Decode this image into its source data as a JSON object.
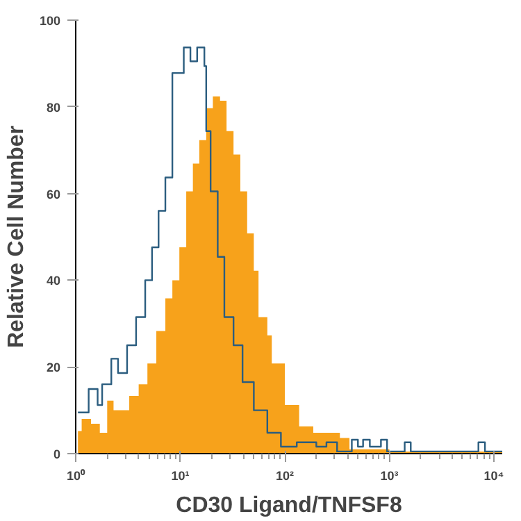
{
  "chart_data": {
    "type": "area",
    "xlabel": "CD30 Ligand/TNFSF8",
    "ylabel": "Relative Cell Number",
    "log": "x",
    "xlim": [
      1,
      12000
    ],
    "ylim": [
      0,
      100
    ],
    "xticks": [
      {
        "value": 1,
        "label": "10⁰"
      },
      {
        "value": 10,
        "label": "10¹"
      },
      {
        "value": 100,
        "label": "10²"
      },
      {
        "value": 1000,
        "label": "10³"
      },
      {
        "value": 10000,
        "label": "10⁴"
      }
    ],
    "yticks": [
      0,
      20,
      40,
      60,
      80,
      100
    ],
    "grid": false,
    "series": [
      {
        "color": "#f7a21b",
        "x": [
          1.05,
          1.14,
          1.4,
          1.7,
          2,
          2.3,
          2.8,
          3.25,
          4,
          4.85,
          5.9,
          7.2,
          8.4,
          9.8,
          11.4,
          13.2,
          15.2,
          17.7,
          20.5,
          24,
          27.7,
          32.3,
          37.5,
          43.6,
          50.5,
          56,
          68,
          75,
          100,
          137,
          187,
          235,
          336,
          415,
          1000,
          12000
        ],
        "values": [
          5.2,
          8,
          6.9,
          4.8,
          12.2,
          10,
          10,
          13.3,
          16,
          20.8,
          28.3,
          35.8,
          40,
          47.6,
          60.5,
          66.9,
          72.3,
          79.7,
          82.4,
          81.4,
          74.4,
          69,
          60.5,
          50.8,
          42.2,
          31.5,
          27.3,
          20.8,
          11.2,
          6.3,
          4.8,
          4.8,
          3.6,
          1,
          0.5,
          0.5
        ]
      },
      {
        "type": "step",
        "color": "#2b5d7f",
        "x": [
          1.05,
          1.33,
          1.62,
          1.79,
          2.19,
          2.54,
          3.1,
          3.78,
          4.62,
          5.37,
          6.2,
          7.2,
          8.4,
          10.8,
          12.5,
          14.5,
          17,
          17.7,
          19.5,
          22.8,
          26.4,
          32.3,
          39.4,
          50.5,
          68,
          91.7,
          130,
          200,
          250,
          316,
          437,
          500,
          560,
          650,
          830,
          950,
          1400,
          1600,
          7100,
          8200,
          12000
        ],
        "values": [
          9.5,
          14.9,
          11.2,
          16,
          21.9,
          18.6,
          25,
          31.5,
          40,
          47.6,
          56,
          63.7,
          87.8,
          93.7,
          90.5,
          93.7,
          89.4,
          74.4,
          60.5,
          45.4,
          31.5,
          25,
          16.5,
          10,
          4.8,
          1.6,
          2.6,
          1.6,
          2.6,
          0.5,
          3.2,
          1.6,
          3.2,
          1.6,
          3.2,
          0.5,
          2.6,
          0.5,
          2.6,
          0.5,
          0.5
        ]
      }
    ]
  }
}
